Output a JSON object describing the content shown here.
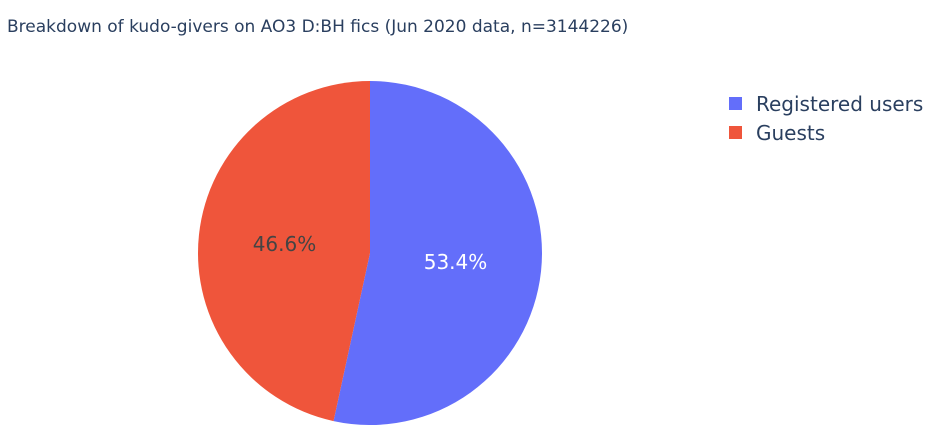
{
  "chart_data": {
    "type": "pie",
    "title": "Breakdown of kudo-givers on AO3 D:BH fics (Jun 2020 data, n=3144226)",
    "slices": [
      {
        "label": "Registered users",
        "value": 53.4,
        "display": "53.4%",
        "color": "#636efa",
        "text_color": "#ffffff"
      },
      {
        "label": "Guests",
        "value": 46.6,
        "display": "46.6%",
        "color": "#ef553b",
        "text_color": "#444444"
      }
    ],
    "legend_position": "top-right",
    "sort": "clockwise from top"
  }
}
